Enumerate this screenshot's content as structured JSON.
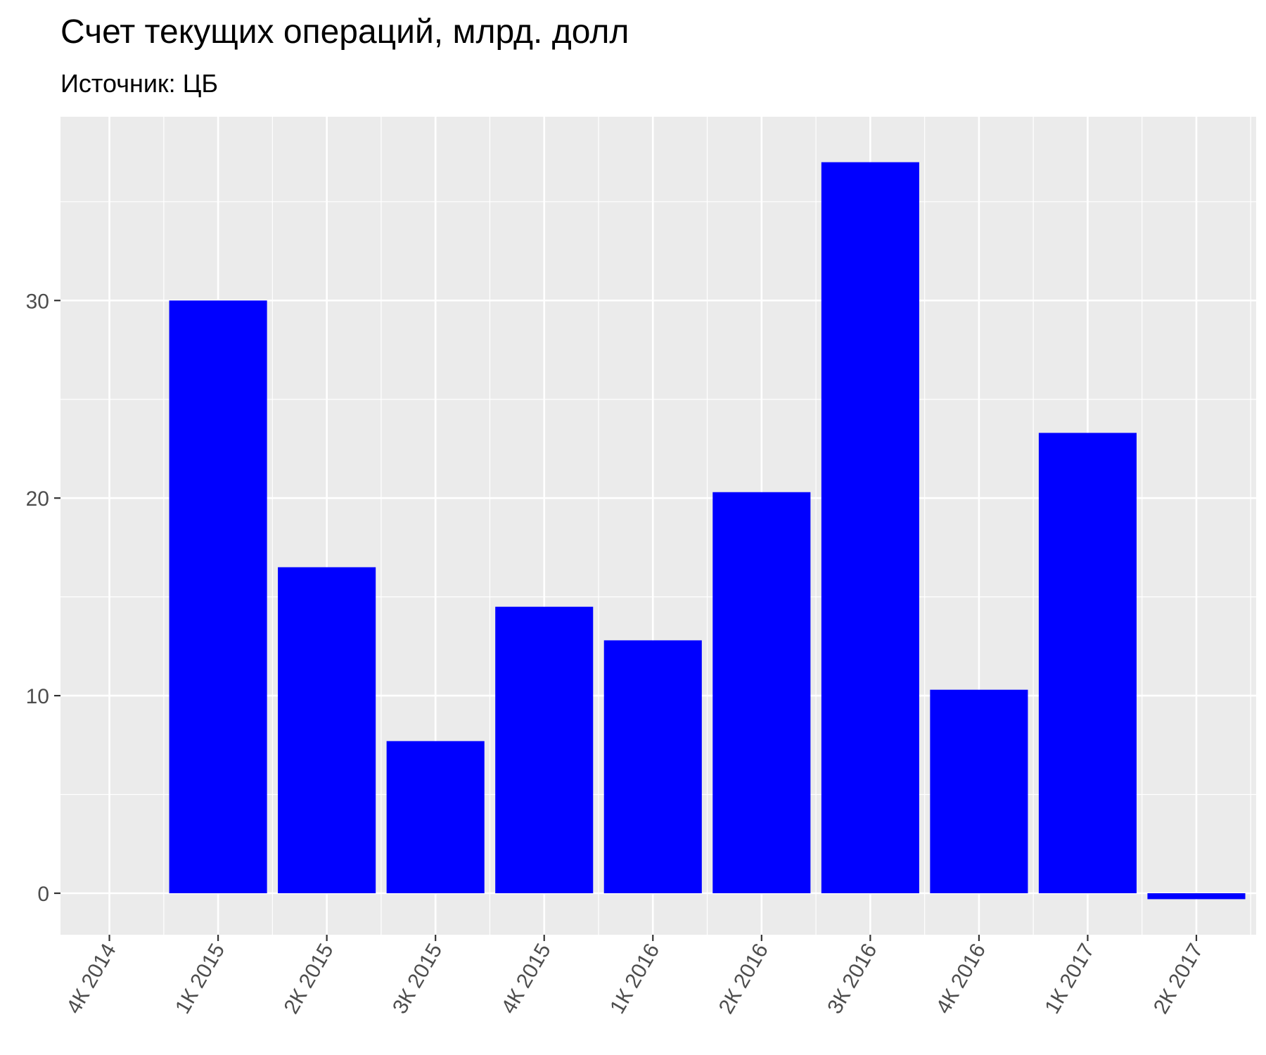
{
  "chart_data": {
    "type": "bar",
    "title": "Счет текущих операций, млрд. долл",
    "subtitle": "Источник: ЦБ",
    "xlabel": "",
    "ylabel": "",
    "x_ticks": [
      "4К 2014",
      "1К 2015",
      "2К 2015",
      "3К 2015",
      "4К 2015",
      "1К 2016",
      "2К 2016",
      "3К 2016",
      "4К 2016",
      "1К 2017",
      "2К 2017"
    ],
    "categories": [
      "1К 2015",
      "2К 2015",
      "3К 2015",
      "4К 2015",
      "1К 2016",
      "2К 2016",
      "3К 2016",
      "4К 2016",
      "1К 2017",
      "2К 2017"
    ],
    "values": [
      30.0,
      16.5,
      7.7,
      14.5,
      12.8,
      20.3,
      37.0,
      10.3,
      23.3,
      -0.3
    ],
    "ylim": [
      -2.1,
      39.3
    ],
    "y_ticks": [
      0,
      10,
      20,
      30
    ],
    "bar_color": "#0000ff",
    "panel_color": "#ebebeb",
    "grid": true,
    "legend": "none"
  }
}
